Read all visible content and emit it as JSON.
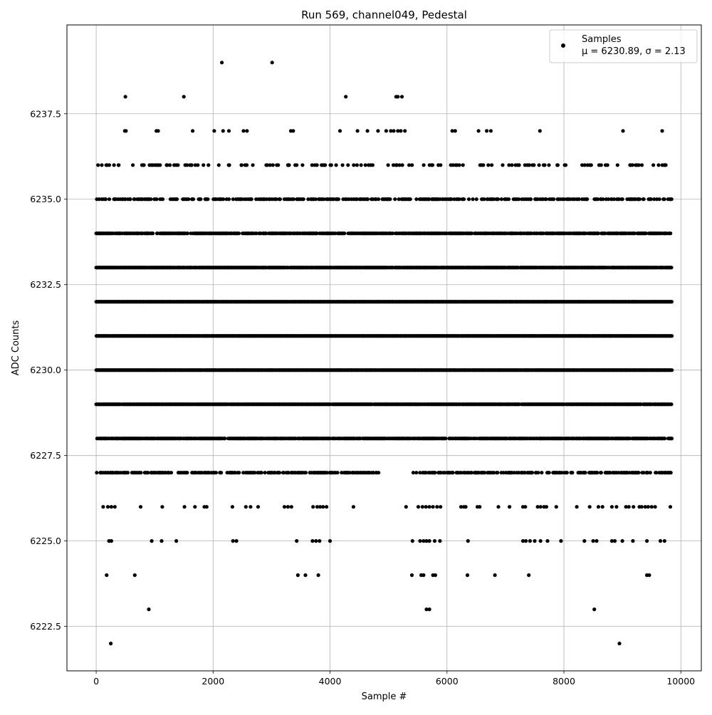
{
  "chart_data": {
    "type": "scatter",
    "title": "Run 569, channel049, Pedestal",
    "xlabel": "Sample #",
    "ylabel": "ADC Counts",
    "xlim": [
      -500,
      10350
    ],
    "ylim": [
      6221.2,
      6240.1
    ],
    "xticks": [
      0,
      2000,
      4000,
      6000,
      8000,
      10000
    ],
    "xtick_labels": [
      "0",
      "2000",
      "4000",
      "6000",
      "8000",
      "10000"
    ],
    "yticks": [
      6222.5,
      6225.0,
      6227.5,
      6230.0,
      6232.5,
      6235.0,
      6237.5
    ],
    "ytick_labels": [
      "6222.5",
      "6225.0",
      "6227.5",
      "6230.0",
      "6232.5",
      "6235.0",
      "6237.5"
    ],
    "grid": true,
    "legend_position": "top-right",
    "series": [
      {
        "name": "Samples",
        "legend_stats": "μ = 6230.89, σ = 2.13",
        "color": "#000000",
        "sample_count": 9850,
        "levels": [
          {
            "y": 6222,
            "x": [
              250,
              8950
            ]
          },
          {
            "y": 6223,
            "x": [
              900,
              5650,
              5700,
              8520
            ]
          },
          {
            "y": 6224,
            "x": [
              180,
              660,
              3450,
              3580,
              3800,
              5400,
              5560,
              5600,
              5760,
              5800,
              6350,
              6820,
              7400,
              9420,
              9460
            ]
          },
          {
            "y": 6225,
            "x": [
              220,
              260,
              950,
              1120,
              1370,
              2340,
              2400,
              3430,
              3700,
              3760,
              3820,
              4000,
              5410,
              5540,
              5600,
              5650,
              5700,
              5790,
              5880,
              6360,
              7300,
              7350,
              7420,
              7500,
              7600,
              7720,
              7950,
              8350,
              8500,
              8560,
              8820,
              8870,
              9000,
              9180,
              9420,
              9650,
              9720
            ]
          },
          {
            "y": 6226,
            "x": [
              120,
              200,
              260,
              320,
              760,
              1130,
              1510,
              1690,
              1850,
              1890,
              2330,
              2560,
              2640,
              2770,
              3220,
              3280,
              3340,
              3710,
              3780,
              3830,
              3880,
              3940,
              4400,
              5300,
              5510,
              5580,
              5640,
              5700,
              5760,
              5830,
              5890,
              6240,
              6290,
              6320,
              6520,
              6560,
              6880,
              7070,
              7300,
              7340,
              7550,
              7600,
              7660,
              7700,
              7870,
              8220,
              8440,
              8590,
              8660,
              8820,
              8900,
              9060,
              9110,
              9190,
              9290,
              9330,
              9390,
              9440,
              9500,
              9560,
              9820
            ]
          }
        ],
        "dense_levels": [
          {
            "y": 6227,
            "density": 0.55,
            "gaps": [
              [
                4850,
                5380
              ]
            ]
          },
          {
            "y": 6228,
            "density": 0.85,
            "gaps": []
          },
          {
            "y": 6229,
            "density": 0.97,
            "gaps": []
          },
          {
            "y": 6230,
            "density": 1.0,
            "gaps": []
          },
          {
            "y": 6231,
            "density": 1.0,
            "gaps": []
          },
          {
            "y": 6232,
            "density": 1.0,
            "gaps": []
          },
          {
            "y": 6233,
            "density": 0.95,
            "gaps": []
          },
          {
            "y": 6234,
            "density": 0.8,
            "gaps": [
              [
                2450,
                2500
              ]
            ]
          },
          {
            "y": 6235,
            "density": 0.45,
            "gaps": []
          },
          {
            "y": 6236,
            "density": 0.2,
            "gaps": []
          }
        ],
        "sparse_top_levels": [
          {
            "y": 6237,
            "x": [
              490,
              510,
              1030,
              1060,
              1650,
              2020,
              2170,
              2270,
              2520,
              2580,
              3330,
              3370,
              4170,
              4470,
              4640,
              4820,
              4960,
              5040,
              5090,
              5160,
              5210,
              5280,
              6090,
              6140,
              6540,
              6680,
              6750,
              7590,
              9010,
              9680
            ]
          },
          {
            "y": 6238,
            "x": [
              500,
              1500,
              4270,
              5130,
              5160,
              5230
            ]
          },
          {
            "y": 6239,
            "x": [
              2150,
              3010
            ]
          }
        ]
      }
    ]
  }
}
